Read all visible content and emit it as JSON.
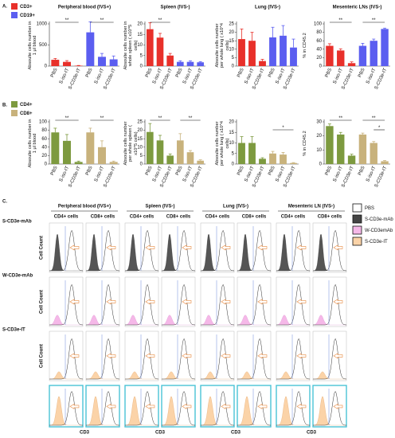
{
  "panel_labels": [
    "A.",
    "B.",
    "C."
  ],
  "chart_data": [
    {
      "type": "bar",
      "title": "Peripheral blood (IVS+)",
      "y_label": "Absoulte cells number in 1 μl blood",
      "categories": [
        "PBS",
        "S-iso-IT",
        "S-CD3e-IT",
        "PBS",
        "S-iso-IT",
        "S-CD3e-IT"
      ],
      "series": [
        {
          "name": "CD3+",
          "color": "#e8302a",
          "values": [
            150,
            100,
            10,
            null,
            null,
            null
          ],
          "errors": [
            30,
            30,
            5,
            null,
            null,
            null
          ]
        },
        {
          "name": "CD19+",
          "color": "#5b5ef0",
          "values": [
            null,
            null,
            null,
            800,
            220,
            160
          ],
          "errors": [
            null,
            null,
            null,
            250,
            80,
            80
          ]
        }
      ],
      "ylim": [
        0,
        1000
      ],
      "yticks": [
        0,
        500,
        1000
      ],
      "annotations": [
        "**",
        "**"
      ]
    },
    {
      "type": "bar",
      "title": "Spleen (IVS-)",
      "y_label": "Absoulte cells number in whole spleen ( x10^5 cells)",
      "categories": [
        "PBS",
        "S-iso-IT",
        "S-CD3e-IT",
        "PBS",
        "S-iso-IT",
        "S-CD3e-IT"
      ],
      "series": [
        {
          "name": "CD3+",
          "color": "#e8302a",
          "values": [
            17.5,
            13.5,
            5,
            null,
            null,
            null
          ],
          "errors": [
            3,
            2,
            1,
            null,
            null,
            null
          ]
        },
        {
          "name": "CD19+",
          "color": "#5b5ef0",
          "values": [
            null,
            null,
            null,
            2,
            2,
            1.8
          ],
          "errors": [
            null,
            null,
            null,
            0.5,
            0.5,
            0.3
          ]
        }
      ],
      "ylim": [
        0,
        20
      ],
      "yticks": [
        0,
        5,
        10,
        15,
        20
      ],
      "annotations": [
        "**"
      ]
    },
    {
      "type": "bar",
      "title": "Lung (IVS-)",
      "y_label": "Absoulte cells number per whole lung ( x10^4 cells)",
      "categories": [
        "PBS",
        "S-iso-IT",
        "S-CD3e-IT",
        "PBS",
        "S-iso-IT",
        "S-CD3e-IT"
      ],
      "series": [
        {
          "name": "CD3+",
          "color": "#e8302a",
          "values": [
            16,
            15,
            3,
            null,
            null,
            null
          ],
          "errors": [
            6,
            5,
            1,
            null,
            null,
            null
          ]
        },
        {
          "name": "CD19+",
          "color": "#5b5ef0",
          "values": [
            null,
            null,
            null,
            17,
            18,
            11
          ],
          "errors": [
            null,
            null,
            null,
            6,
            6,
            5
          ]
        }
      ],
      "ylim": [
        0,
        25
      ],
      "yticks": [
        0,
        5,
        10,
        15,
        20,
        25
      ],
      "annotations": []
    },
    {
      "type": "bar",
      "title": "Mesenteric LNs (IVS-)",
      "y_label": "% in CD45.2",
      "categories": [
        "PBS",
        "S-iso-IT",
        "S-CD3e-IT",
        "PBS",
        "S-iso-IT",
        "S-CD3e-IT"
      ],
      "series": [
        {
          "name": "CD3+",
          "color": "#e8302a",
          "values": [
            48,
            37,
            7,
            null,
            null,
            null
          ],
          "errors": [
            5,
            4,
            3,
            null,
            null,
            null
          ]
        },
        {
          "name": "CD19+",
          "color": "#5b5ef0",
          "values": [
            null,
            null,
            null,
            48,
            60,
            88
          ],
          "errors": [
            null,
            null,
            null,
            6,
            4,
            2
          ]
        }
      ],
      "ylim": [
        0,
        100
      ],
      "yticks": [
        0,
        20,
        40,
        60,
        80,
        100
      ],
      "annotations": [
        "**",
        "**"
      ]
    },
    {
      "type": "bar",
      "y_label": "Absoulte cells number in 1 μl blood",
      "categories": [
        "PBS",
        "S-iso-IT",
        "S-CD3e-IT",
        "PBS",
        "S-iso-IT",
        "S-CD3e-IT"
      ],
      "series": [
        {
          "name": "CD4+",
          "color": "#7d9a3f",
          "values": [
            75,
            55,
            5,
            null,
            null,
            null
          ],
          "errors": [
            10,
            15,
            2,
            null,
            null,
            null
          ]
        },
        {
          "name": "CD8+",
          "color": "#c8b27c",
          "values": [
            null,
            null,
            null,
            75,
            40,
            5
          ],
          "errors": [
            null,
            null,
            null,
            10,
            15,
            2
          ]
        }
      ],
      "ylim": [
        0,
        100
      ],
      "yticks": [
        0,
        20,
        40,
        60,
        80,
        100
      ],
      "annotations": [
        "**",
        "**"
      ]
    },
    {
      "type": "bar",
      "y_label": "Absoulte cells number per whole spleen ( x10^5 cells)",
      "categories": [
        "PBS",
        "S-iso-IT",
        "S-CD3e-IT",
        "PBS",
        "S-iso-IT",
        "S-CD3e-IT"
      ],
      "series": [
        {
          "name": "CD4+",
          "color": "#7d9a3f",
          "values": [
            19,
            14,
            5,
            null,
            null,
            null
          ],
          "errors": [
            5,
            3,
            1,
            null,
            null,
            null
          ]
        },
        {
          "name": "CD8+",
          "color": "#c8b27c",
          "values": [
            null,
            null,
            null,
            14,
            7,
            2
          ],
          "errors": [
            null,
            null,
            null,
            4,
            1,
            0.5
          ]
        }
      ],
      "ylim": [
        0,
        25
      ],
      "yticks": [
        0,
        5,
        10,
        15,
        20,
        25
      ],
      "annotations": [
        "**",
        "**"
      ]
    },
    {
      "type": "bar",
      "y_label": "Absoulte cells number per whole lung ( x10^4 cells)",
      "categories": [
        "PBS",
        "S-iso-IT",
        "S-CD3e-IT",
        "PBS",
        "S-iso-IT",
        "S-CD3e-IT"
      ],
      "series": [
        {
          "name": "CD4+",
          "color": "#7d9a3f",
          "values": [
            10,
            10,
            2.5,
            null,
            null,
            null
          ],
          "errors": [
            3,
            3,
            0.5,
            null,
            null,
            null
          ]
        },
        {
          "name": "CD8+",
          "color": "#c8b27c",
          "values": [
            null,
            null,
            null,
            5,
            4.5,
            0.5
          ],
          "errors": [
            null,
            null,
            null,
            1,
            1,
            0.2
          ]
        }
      ],
      "ylim": [
        0,
        20
      ],
      "yticks": [
        0,
        5,
        10,
        15,
        20
      ],
      "annotations": [
        "*"
      ]
    },
    {
      "type": "bar",
      "y_label": "% in CD45.2",
      "categories": [
        "PBS",
        "S-iso-IT",
        "S-CD3e-IT",
        "PBS",
        "S-iso-IT",
        "S-CD3e-IT"
      ],
      "series": [
        {
          "name": "CD4+",
          "color": "#7d9a3f",
          "values": [
            27,
            21,
            6,
            null,
            null,
            null
          ],
          "errors": [
            1.5,
            1.5,
            1,
            null,
            null,
            null
          ]
        },
        {
          "name": "CD8+",
          "color": "#c8b27c",
          "values": [
            null,
            null,
            null,
            21,
            15,
            2
          ],
          "errors": [
            null,
            null,
            null,
            1,
            1,
            0.5
          ]
        }
      ],
      "ylim": [
        0,
        30
      ],
      "yticks": [
        0,
        10,
        20,
        30
      ],
      "annotations": [
        "**",
        "*",
        "**"
      ]
    }
  ],
  "panel_c": {
    "columns": [
      {
        "title": "Peripheral blood (IVS+)",
        "cells": [
          "CD4+ cells",
          "CD8+ cells"
        ]
      },
      {
        "title": "Spleen (IVS-)",
        "cells": [
          "CD4+ cells",
          "CD8+ cells"
        ]
      },
      {
        "title": "Lung (IVS-)",
        "cells": [
          "CD4+ cells",
          "CD8+ cells"
        ]
      },
      {
        "title": "Mesenteric LN (IVS-)",
        "cells": [
          "CD4+ cells",
          "CD8+ cells"
        ]
      }
    ],
    "rows": [
      "S-CD3e-mAb",
      "W-CD3e-mAb",
      "S-CD3e-IT"
    ],
    "y_label": "Cell Count",
    "x_label": "CD3",
    "legend": [
      {
        "name": "PBS",
        "color": "#ffffff"
      },
      {
        "name": "S-CD3e-mAb",
        "color": "#444444"
      },
      {
        "name": "W-CD3emAb",
        "color": "#f5b8e8"
      },
      {
        "name": "S-CD3e-IT",
        "color": "#fbd3a8"
      }
    ]
  }
}
